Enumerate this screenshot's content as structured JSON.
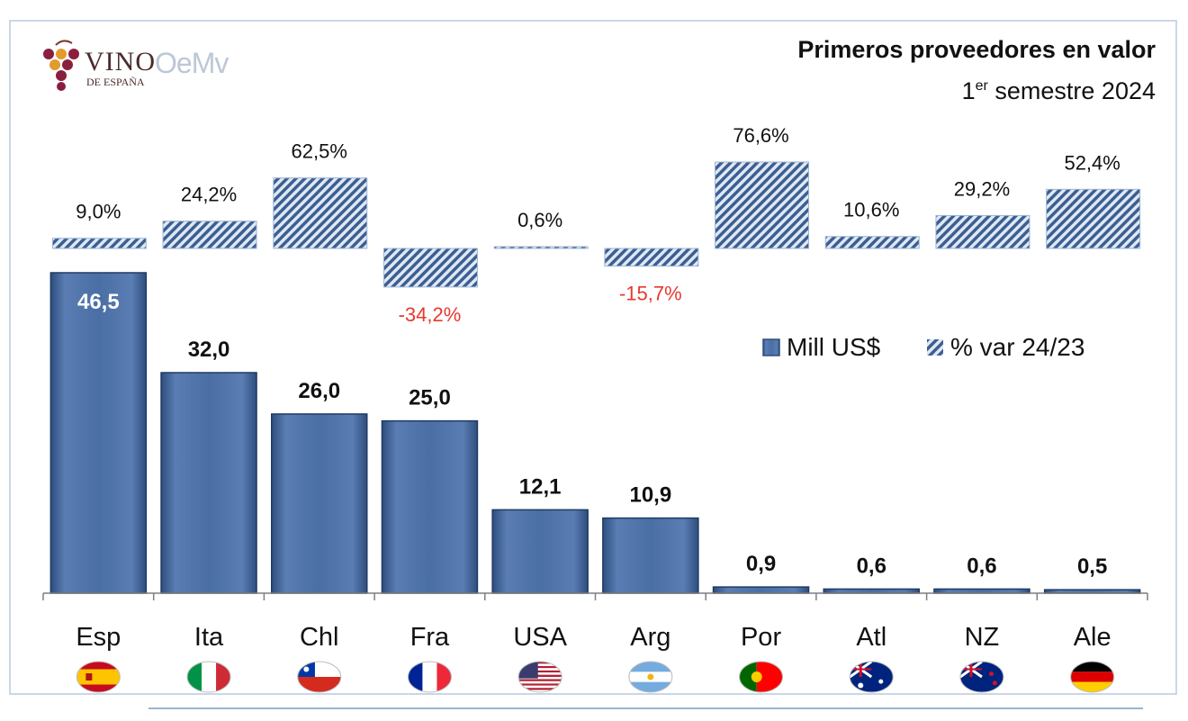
{
  "header": {
    "logo_brand": "VINO",
    "logo_sub": "DE ESPAÑA",
    "logo_oemv": "OeMv",
    "title": "Primeros proveedores en valor",
    "subtitle_prefix": "1",
    "subtitle_sup": "er",
    "subtitle_rest": " semestre 2024"
  },
  "legend": {
    "value_label": "Mill US$",
    "var_label": "% var 24/23",
    "placement": "right-middle"
  },
  "colors": {
    "bar": "#4a6fa5",
    "bar_dark": "#2e4e7e",
    "hatch": "#3c5f92",
    "positive_label": "#111111",
    "negative_label": "#e8382e"
  },
  "chart_data": {
    "type": "bar",
    "categories": [
      "Esp",
      "Ita",
      "Chl",
      "Fra",
      "USA",
      "Arg",
      "Por",
      "Atl",
      "NZ",
      "Ale"
    ],
    "series": [
      {
        "name": "Mill US$",
        "values": [
          46.5,
          32.0,
          26.0,
          25.0,
          12.1,
          10.9,
          0.9,
          0.6,
          0.6,
          0.5
        ],
        "labels": [
          "46,5",
          "32,0",
          "26,0",
          "25,0",
          "12,1",
          "10,9",
          "0,9",
          "0,6",
          "0,6",
          "0,5"
        ]
      },
      {
        "name": "% var 24/23",
        "values": [
          9.0,
          24.2,
          62.5,
          -34.2,
          0.6,
          -15.7,
          76.6,
          10.6,
          29.2,
          52.4
        ],
        "labels": [
          "9,0%",
          "24,2%",
          "62,5%",
          "-34,2%",
          "0,6%",
          "-15,7%",
          "76,6%",
          "10,6%",
          "29,2%",
          "52,4%"
        ]
      }
    ],
    "flags": [
      "spain-flag-icon",
      "italy-flag-icon",
      "chile-flag-icon",
      "france-flag-icon",
      "usa-flag-icon",
      "argentina-flag-icon",
      "portugal-flag-icon",
      "australia-flag-icon",
      "new-zealand-flag-icon",
      "germany-flag-icon"
    ],
    "ylim_value": [
      0,
      50
    ],
    "ylim_var": [
      -40,
      80
    ],
    "grid": false,
    "legend": "right"
  }
}
